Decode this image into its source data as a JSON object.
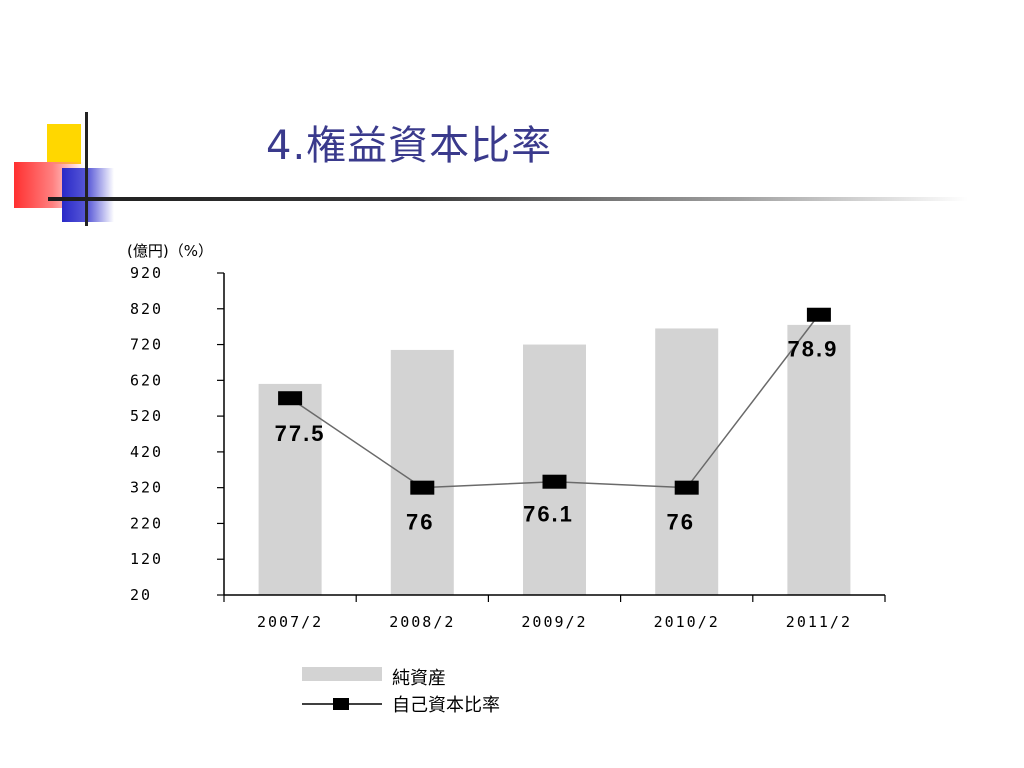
{
  "slide": {
    "title": "4.権益資本比率"
  },
  "chart_data": {
    "type": "bar+line",
    "y_unit_label": "(億円)（%）",
    "categories": [
      "2007/2",
      "2008/2",
      "2009/2",
      "2010/2",
      "2011/2"
    ],
    "ylim": [
      20,
      920
    ],
    "yticks": [
      920,
      820,
      720,
      620,
      520,
      420,
      320,
      220,
      120,
      20
    ],
    "series": [
      {
        "name": "純資産",
        "type": "bar",
        "color": "#d3d3d3",
        "values": [
          610,
          705,
          720,
          765,
          775
        ]
      },
      {
        "name": "自己資本比率",
        "type": "line",
        "color": "#000000",
        "values": [
          77.5,
          76,
          76.1,
          76,
          78.9
        ],
        "labels": [
          "77.5",
          "76",
          "76.1",
          "76",
          "78.9"
        ]
      }
    ],
    "legend_position": "bottom",
    "grid": false
  }
}
